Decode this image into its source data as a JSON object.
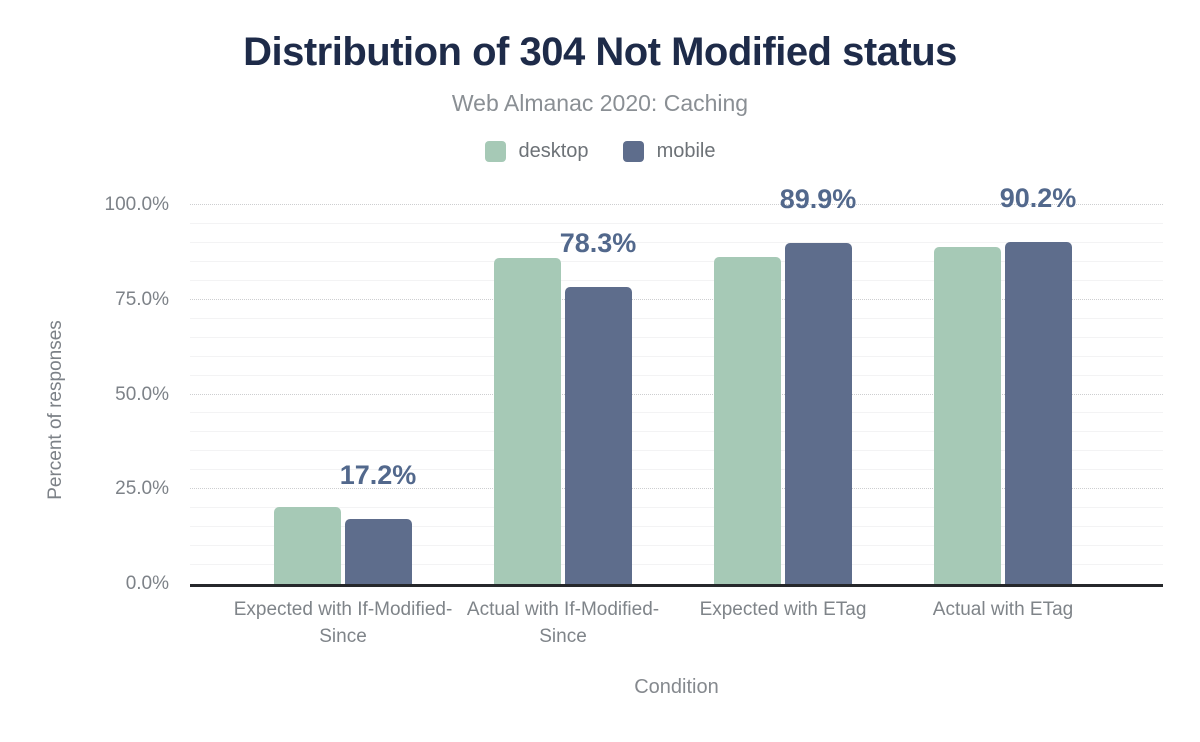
{
  "figure": {
    "title": "Distribution of 304 Not Modified status",
    "subtitle": "Web Almanac 2020: Caching"
  },
  "chart_data": {
    "type": "bar",
    "title": "Distribution of 304 Not Modified status",
    "subtitle": "Web Almanac 2020: Caching",
    "xlabel": "Condition",
    "ylabel": "Percent of responses",
    "categories": [
      "Expected with If-Modified-Since",
      "Actual with If-Modified-Since",
      "Expected with ETag",
      "Actual with ETag"
    ],
    "series": [
      {
        "name": "desktop",
        "color": "#a6c9b6",
        "values": [
          20.2,
          86.0,
          86.3,
          88.9
        ]
      },
      {
        "name": "mobile",
        "color": "#5e6d8c",
        "values": [
          17.2,
          78.3,
          89.9,
          90.2
        ]
      }
    ],
    "annotations": [
      "17.2%",
      "78.3%",
      "89.9%",
      "90.2%"
    ],
    "annotations_for_series": "mobile",
    "ylim": [
      0,
      100
    ],
    "yticks": [
      {
        "value": 0,
        "label": "0.0%"
      },
      {
        "value": 25,
        "label": "25.0%"
      },
      {
        "value": 50,
        "label": "50.0%"
      },
      {
        "value": 75,
        "label": "75.0%"
      },
      {
        "value": 100,
        "label": "100.0%"
      }
    ],
    "grid": "horizontal: dotted major every 25%, faint solid minor every 5%",
    "legend_position": "top"
  },
  "colors": {
    "title": "#1e2b49",
    "subtitle": "#8a8f94",
    "axis_text": "#7d8288",
    "axis_line": "#26282b",
    "data_label": "#52688c",
    "desktop": "#a6c9b6",
    "mobile": "#5e6d8c",
    "background": "#ffffff"
  }
}
